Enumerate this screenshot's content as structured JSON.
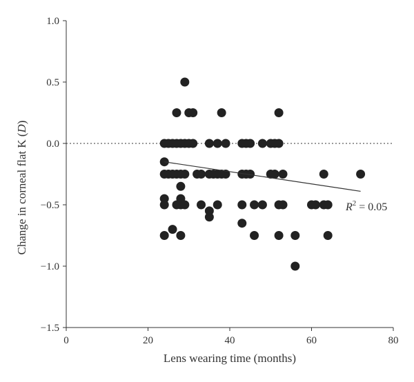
{
  "chart_data": {
    "type": "scatter",
    "xlabel": "Lens wearing time (months)",
    "ylabel": "Change in corneal flat K (",
    "ylabel_unit": "D",
    "ylabel_close": ")",
    "xlim": [
      0,
      80
    ],
    "ylim": [
      -1.5,
      1.0
    ],
    "x_ticks": [
      0,
      20,
      40,
      60,
      80
    ],
    "y_ticks": [
      1.0,
      0.5,
      0.0,
      -0.5,
      -1.0,
      -1.5
    ],
    "x_tick_labels": [
      "0",
      "20",
      "40",
      "60",
      "80"
    ],
    "y_tick_labels": [
      "1.0",
      "0.5",
      "0.0",
      "−0.5",
      "−1.0",
      "−1.5"
    ],
    "reference_line_y": 0.0,
    "grid": false,
    "trendline": {
      "x": [
        24,
        72
      ],
      "y": [
        -0.15,
        -0.39
      ]
    },
    "annotation": {
      "prefix": "R",
      "sup": "2",
      "suffix": " = 0.05"
    },
    "points": [
      [
        24,
        -0.15
      ],
      [
        24,
        -0.25
      ],
      [
        24,
        0
      ],
      [
        24,
        -0.45
      ],
      [
        24,
        -0.5
      ],
      [
        24,
        -0.75
      ],
      [
        25,
        0
      ],
      [
        25,
        -0.25
      ],
      [
        26,
        0
      ],
      [
        26,
        -0.25
      ],
      [
        26,
        -0.7
      ],
      [
        27,
        0.25
      ],
      [
        27,
        0
      ],
      [
        27,
        -0.25
      ],
      [
        27,
        -0.5
      ],
      [
        28,
        0
      ],
      [
        28,
        -0.25
      ],
      [
        28,
        -0.35
      ],
      [
        28,
        -0.45
      ],
      [
        28,
        -0.5
      ],
      [
        28,
        -0.75
      ],
      [
        29,
        0.5
      ],
      [
        29,
        0
      ],
      [
        29,
        -0.25
      ],
      [
        29,
        -0.5
      ],
      [
        30,
        0.25
      ],
      [
        30,
        0
      ],
      [
        31,
        0.25
      ],
      [
        31,
        0
      ],
      [
        32,
        -0.25
      ],
      [
        33,
        -0.25
      ],
      [
        33,
        -0.5
      ],
      [
        35,
        0
      ],
      [
        35,
        -0.25
      ],
      [
        35,
        -0.55
      ],
      [
        35,
        -0.6
      ],
      [
        36,
        -0.25
      ],
      [
        37,
        0
      ],
      [
        37,
        -0.25
      ],
      [
        37,
        -0.5
      ],
      [
        38,
        0.25
      ],
      [
        38,
        -0.25
      ],
      [
        39,
        0
      ],
      [
        39,
        -0.25
      ],
      [
        43,
        0
      ],
      [
        43,
        -0.25
      ],
      [
        43,
        -0.5
      ],
      [
        43,
        -0.65
      ],
      [
        44,
        0
      ],
      [
        44,
        -0.25
      ],
      [
        45,
        0
      ],
      [
        45,
        -0.25
      ],
      [
        46,
        -0.5
      ],
      [
        46,
        -0.75
      ],
      [
        48,
        0
      ],
      [
        48,
        -0.5
      ],
      [
        50,
        0
      ],
      [
        50,
        -0.25
      ],
      [
        51,
        0
      ],
      [
        51,
        -0.25
      ],
      [
        52,
        0.25
      ],
      [
        52,
        0
      ],
      [
        52,
        -0.5
      ],
      [
        52,
        -0.75
      ],
      [
        53,
        -0.25
      ],
      [
        53,
        -0.5
      ],
      [
        56,
        -0.75
      ],
      [
        56,
        -1.0
      ],
      [
        60,
        -0.5
      ],
      [
        61,
        -0.5
      ],
      [
        63,
        -0.25
      ],
      [
        63,
        -0.5
      ],
      [
        64,
        -0.5
      ],
      [
        64,
        -0.75
      ],
      [
        72,
        -0.25
      ]
    ]
  }
}
